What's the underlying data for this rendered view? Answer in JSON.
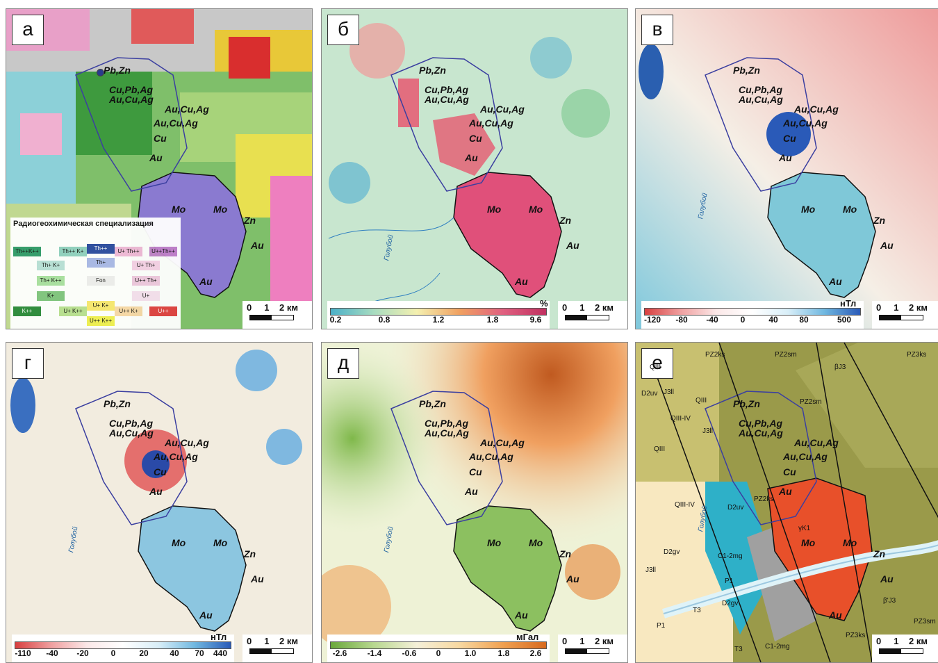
{
  "panels": [
    {
      "label": "а",
      "kind": "radiogeochem"
    },
    {
      "label": "б",
      "kind": "percent"
    },
    {
      "label": "в",
      "kind": "magnetic"
    },
    {
      "label": "г",
      "kind": "magnetic2"
    },
    {
      "label": "д",
      "kind": "gravity"
    },
    {
      "label": "е",
      "kind": "geology"
    }
  ],
  "scale": {
    "zero": "0",
    "one": "1",
    "two": "2 км"
  },
  "river_name": "Голубой",
  "deposits": {
    "pbzn": "Pb,Zn",
    "cupbag": "Cu,Pb,Ag",
    "aucuag1": "Au,Cu,Ag",
    "aucuag2": "Au,Cu,Ag",
    "aucuag3": "Au,Cu,Ag",
    "cu": "Cu",
    "au1": "Au",
    "mo1": "Mo",
    "mo2": "Mo",
    "zn": "Zn",
    "au2": "Au",
    "au3": "Au"
  },
  "legend_a": {
    "title": "Радиогеохимическая специализация",
    "cells": [
      "Th++K++",
      "Th++ K+",
      "Th++",
      "U+ Th++",
      "U++Th++",
      "Th+ K+",
      "Th+",
      "U+ Th+",
      "Th+ K++",
      "Fon",
      "U++ Th+",
      "K+",
      "U+",
      "K++",
      "U+ K++",
      "U+ K+",
      "U++ K+",
      "U++",
      "U++ K++"
    ]
  },
  "colorbars": {
    "b": {
      "unit": "%",
      "ticks": [
        "0.2",
        "0.8",
        "1.2",
        "1.8",
        "9.6"
      ]
    },
    "v": {
      "unit": "нТл",
      "ticks": [
        "-120",
        "-80",
        "-40",
        "0",
        "40",
        "80",
        "500"
      ]
    },
    "g": {
      "unit": "нТл",
      "ticks": [
        "-110",
        "-40",
        "-20",
        "0",
        "20",
        "40",
        "70",
        "440"
      ]
    },
    "d": {
      "unit": "мГал",
      "ticks": [
        "-2.6",
        "-1.4",
        "-0.6",
        "0",
        "1.0",
        "1.8",
        "2.6"
      ]
    }
  },
  "geology_labels": [
    "QIII",
    "PZ2ks",
    "PZ2sm",
    "βJ3",
    "PZ3ks",
    "D2uv",
    "J3ll",
    "PZ2sm",
    "QIII",
    "QIII-IV",
    "QIII",
    "J3ll",
    "QIII-IV",
    "D2uv",
    "PZ2ks",
    "γK1",
    "D2gv",
    "C1-2mg",
    "P1",
    "J3ll",
    "T3",
    "D2gv",
    "P1",
    "PZ3ks",
    "T3",
    "C1-2mg",
    "β'J3",
    "PZ3sm"
  ],
  "colors": {
    "deposit_pbzn": "#2a3a8c",
    "deposit_cu": "#6fb43a",
    "deposit_au": "#e8642a",
    "deposit_mo": "#b07ac8",
    "deposit_zn": "#56b8c8",
    "outline": "#3b3fa0",
    "intrusion": "#111111"
  }
}
